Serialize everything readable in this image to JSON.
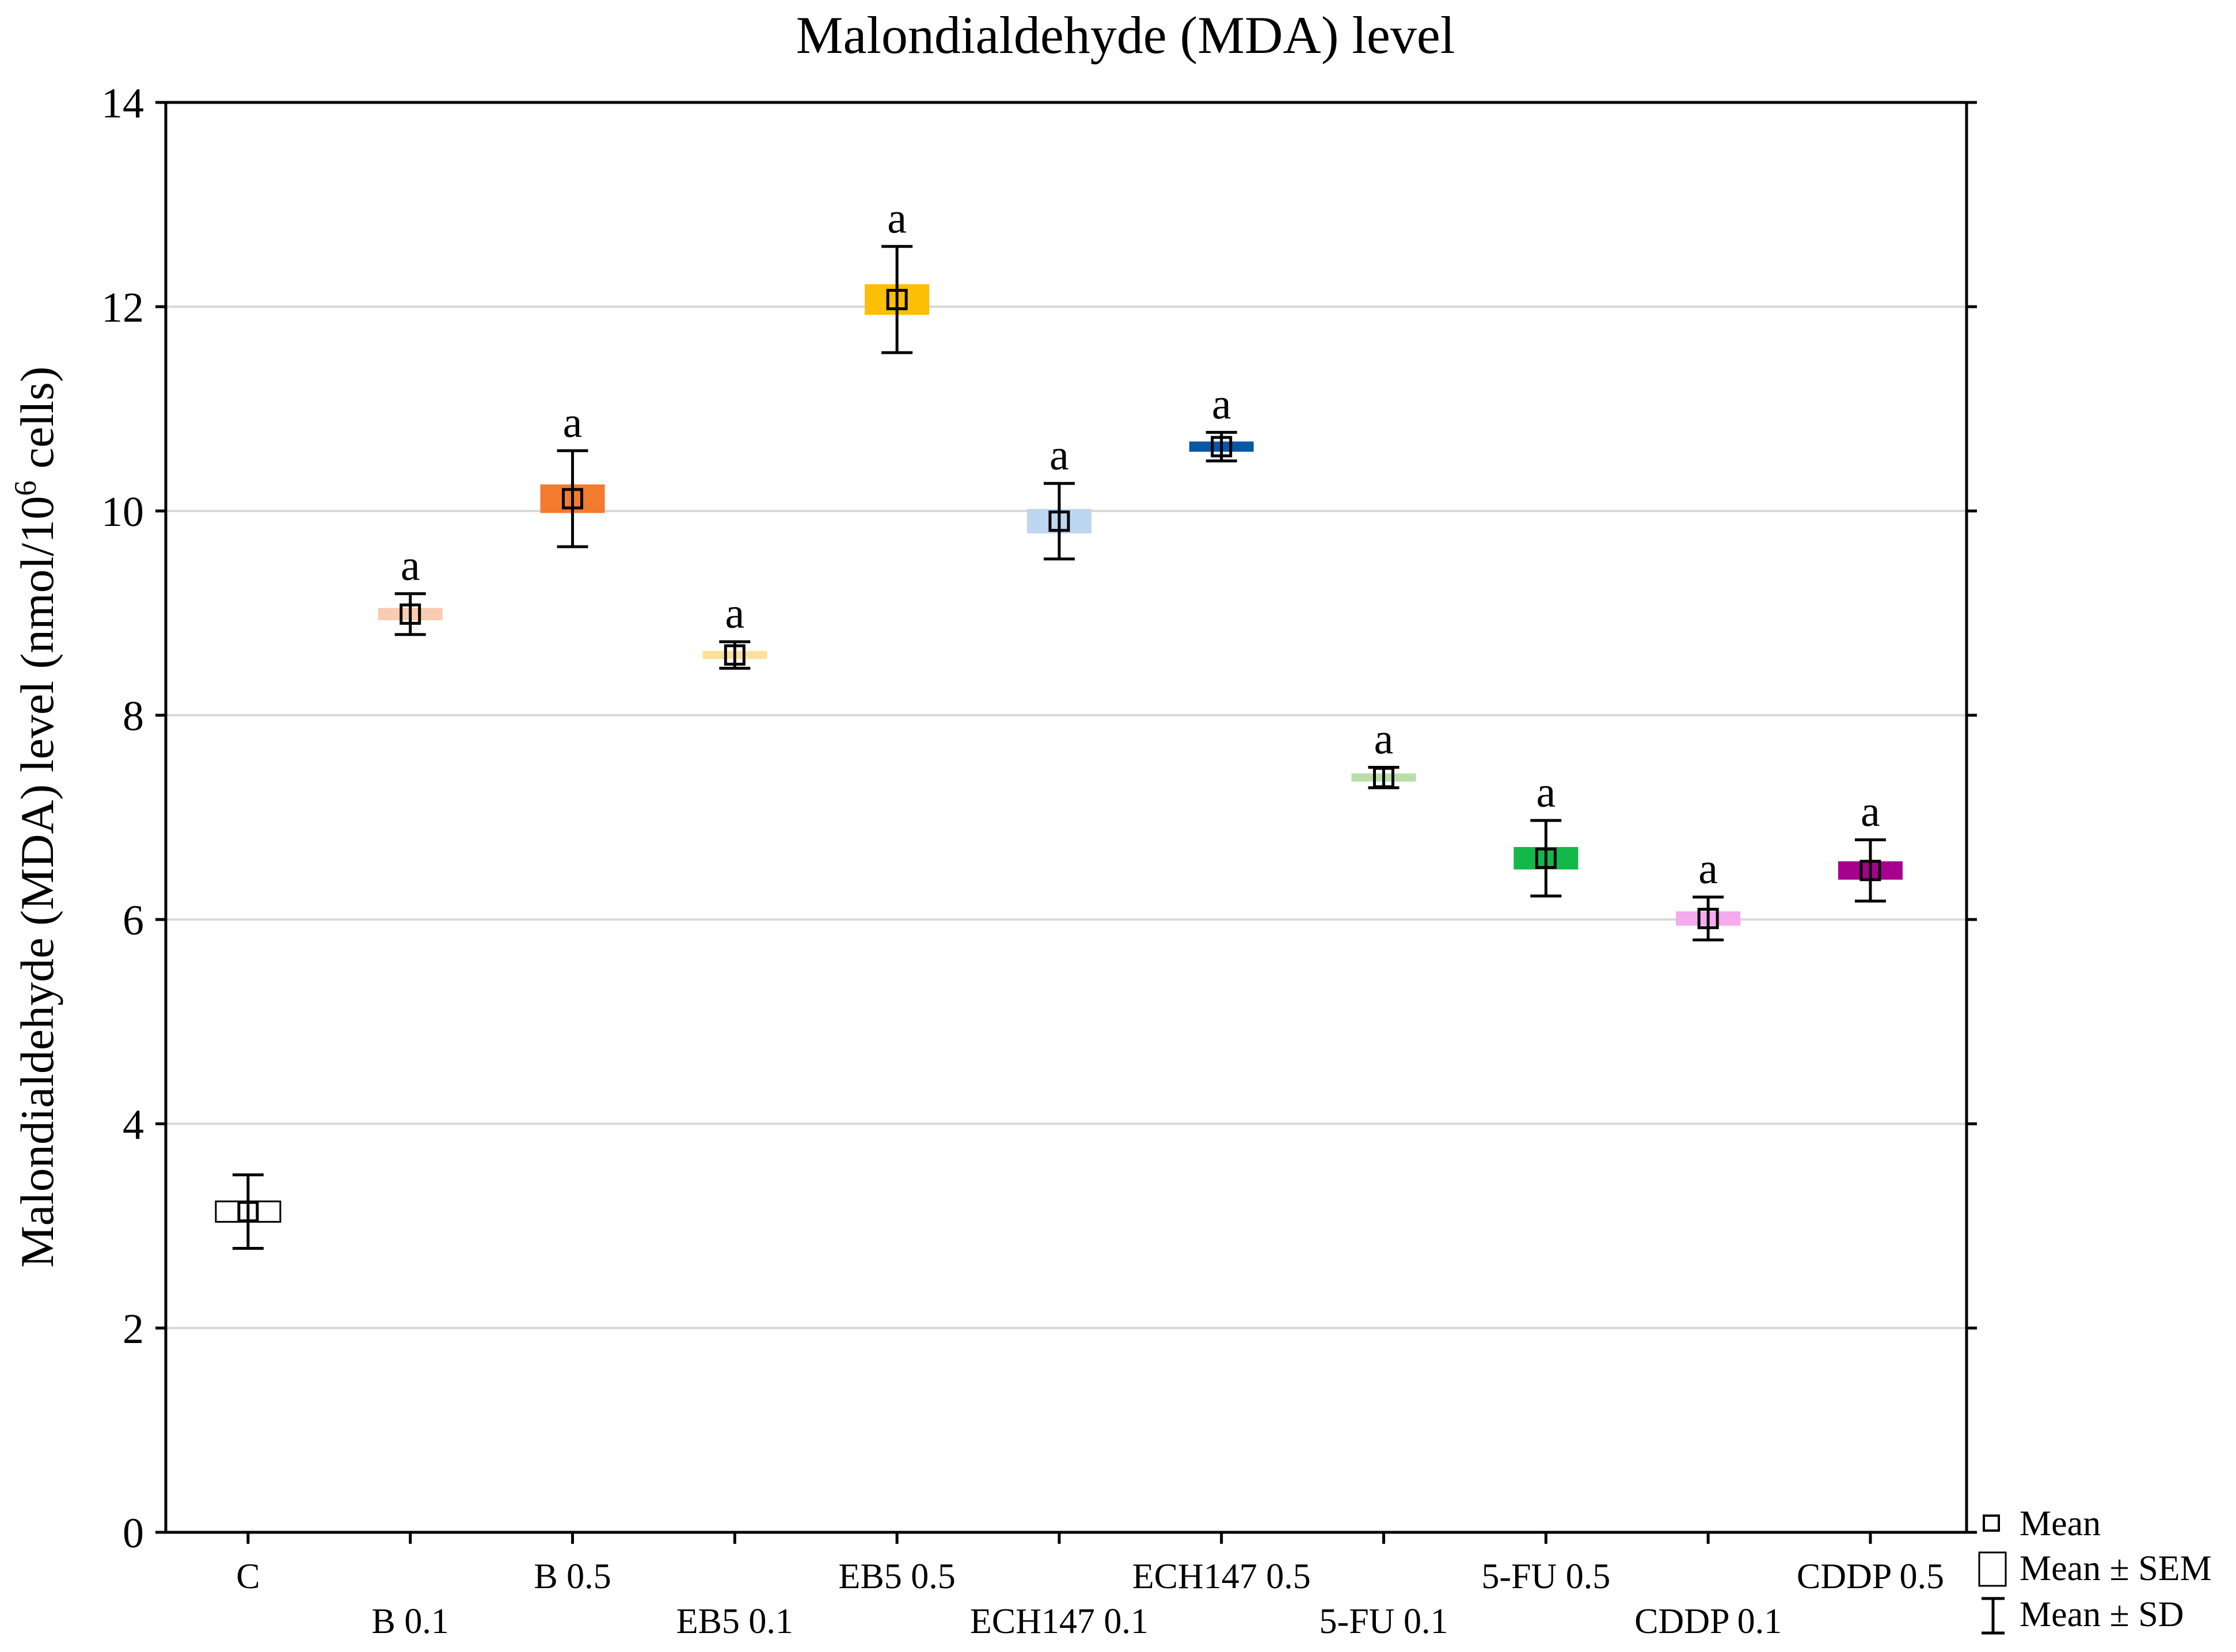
{
  "chart_data": {
    "type": "scatter",
    "title": "Malondialdehyde (MDA) level",
    "ylabel_main": "Malondialdehyde (MDA) level (nmol/10",
    "ylabel_sup": "6",
    "ylabel_end": " cells)",
    "xlabel": "",
    "ylim": [
      0,
      14
    ],
    "yticks": [
      "0",
      "2",
      "4",
      "6",
      "8",
      "10",
      "12",
      "14"
    ],
    "grid": true,
    "categories": [
      "C",
      "B 0.1",
      "B 0.5",
      "EB5 0.1",
      "EB5 0.5",
      "ECH147 0.1",
      "ECH147 0.5",
      "5-FU 0.1",
      "5-FU 0.5",
      "CDDP 0.1",
      "CDDP 0.5"
    ],
    "mean": [
      3.14,
      8.99,
      10.12,
      8.59,
      12.07,
      9.9,
      10.63,
      7.39,
      6.6,
      6.01,
      6.48
    ],
    "sem": [
      0.1,
      0.06,
      0.14,
      0.04,
      0.15,
      0.12,
      0.05,
      0.04,
      0.11,
      0.07,
      0.09
    ],
    "sd": [
      0.36,
      0.2,
      0.47,
      0.13,
      0.52,
      0.37,
      0.14,
      0.1,
      0.37,
      0.21,
      0.3
    ],
    "colors": [
      "#ffffff",
      "#f9cbb0",
      "#f27b2e",
      "#fde19a",
      "#fcbf06",
      "#bcd7ef",
      "#0a57a6",
      "#b9dfa7",
      "#14b84a",
      "#f5aaee",
      "#a8008e"
    ],
    "significance": [
      "",
      "a",
      "a",
      "a",
      "a",
      "a",
      "a",
      "a",
      "a",
      "a",
      "a"
    ],
    "legend": {
      "position": "bottom-right",
      "entries": [
        "Mean",
        "Mean ± SEM",
        "Mean ± SD"
      ]
    }
  }
}
